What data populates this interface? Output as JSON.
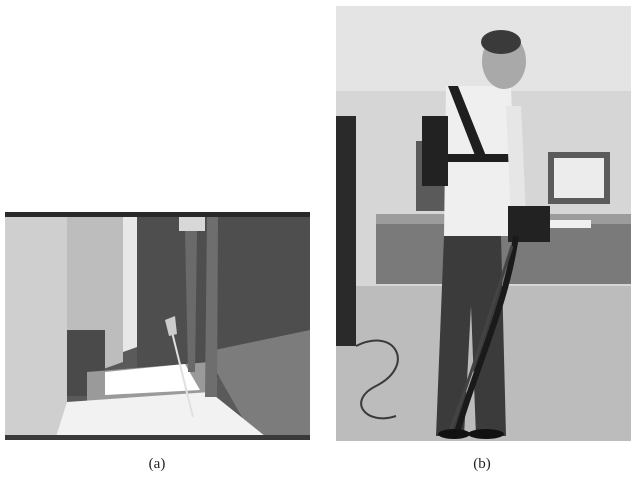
{
  "figure": {
    "panels": [
      {
        "caption": "(a)",
        "content": "virtual-environment-render"
      },
      {
        "caption": "(b)",
        "content": "wearable-system-photo"
      }
    ],
    "colors": {
      "background": "#ffffff",
      "render_floor": "#f2f2f2",
      "render_sky": "#5a5a5a",
      "photo_wall": "#d6d6d6"
    }
  }
}
